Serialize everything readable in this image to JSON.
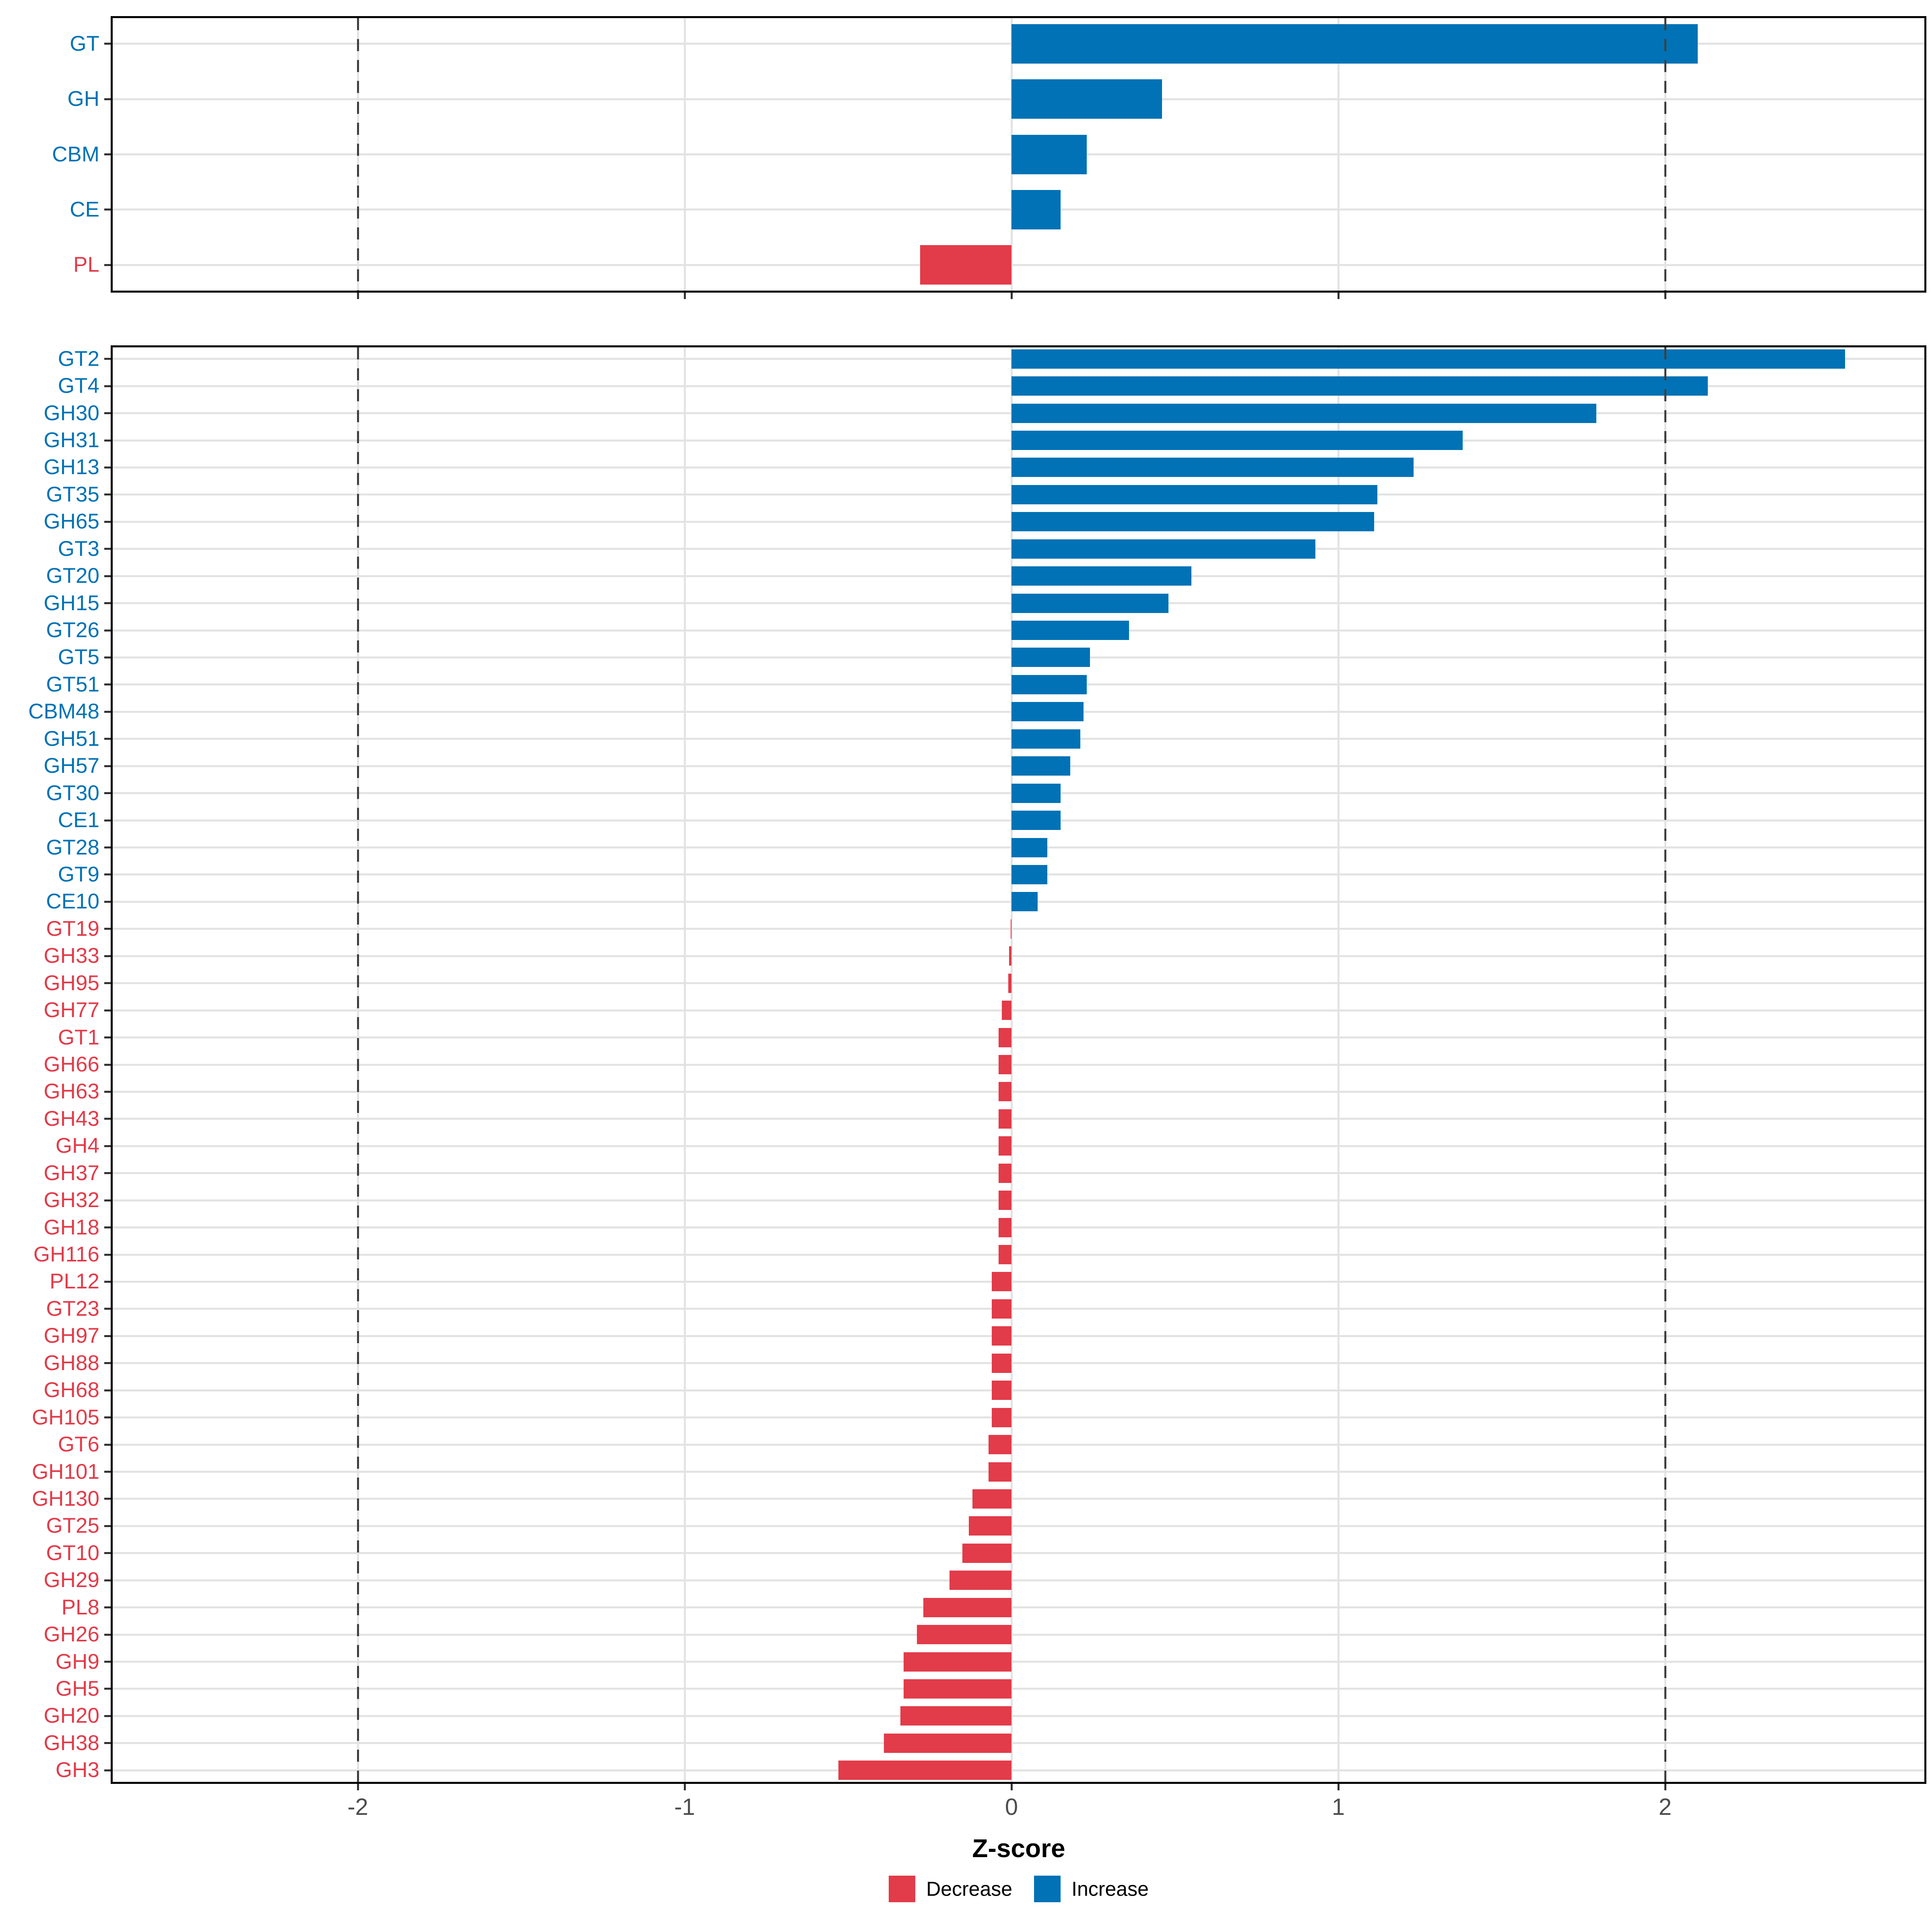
{
  "chart_data": {
    "type": "bar",
    "orientation": "horizontal",
    "title": "",
    "xlabel": "Z-score",
    "ylabel": "",
    "x_range": [
      -2.76,
      2.8
    ],
    "grid": "on",
    "x_ticks": [
      {
        "value": -2,
        "label": "-2"
      },
      {
        "value": -1,
        "label": "-1"
      },
      {
        "value": 0,
        "label": "0"
      },
      {
        "value": 1,
        "label": "1"
      },
      {
        "value": 2,
        "label": "2"
      }
    ],
    "dashed_guides": [
      -2,
      2
    ],
    "colors": {
      "increase": "#0072B5",
      "decrease": "#E23B49",
      "grid": "#E3E3E3",
      "dashed_guide": "#3F3F3F",
      "axis_tick": "#333333",
      "tick_label": "#4D4D4D",
      "panel_border": "#000000"
    },
    "legend": {
      "position": "bottom",
      "items": [
        {
          "label": "Decrease",
          "color": "#E23B49"
        },
        {
          "label": "Increase",
          "color": "#0072B5"
        }
      ]
    },
    "panels": [
      {
        "name": "enzyme-families",
        "categories": [
          "GT",
          "GH",
          "CBM",
          "CE",
          "PL"
        ],
        "values": [
          2.1,
          0.46,
          0.23,
          0.15,
          -0.28
        ]
      },
      {
        "name": "enzyme-subfamilies",
        "categories": [
          "GT2",
          "GT4",
          "GH30",
          "GH31",
          "GH13",
          "GT35",
          "GH65",
          "GT3",
          "GT20",
          "GH15",
          "GT26",
          "GT5",
          "GT51",
          "CBM48",
          "GH51",
          "GH57",
          "GT30",
          "CE1",
          "GT28",
          "GT9",
          "CE10",
          "GT19",
          "GH33",
          "GH95",
          "GH77",
          "GT1",
          "GH66",
          "GH63",
          "GH43",
          "GH4",
          "GH37",
          "GH32",
          "GH18",
          "GH116",
          "PL12",
          "GT23",
          "GH97",
          "GH88",
          "GH68",
          "GH105",
          "GT6",
          "GH101",
          "GH130",
          "GT25",
          "GT10",
          "GH29",
          "PL8",
          "GH26",
          "GH9",
          "GH5",
          "GH20",
          "GH38",
          "GH3"
        ],
        "values": [
          2.55,
          2.13,
          1.79,
          1.38,
          1.23,
          1.12,
          1.11,
          0.93,
          0.55,
          0.48,
          0.36,
          0.24,
          0.23,
          0.22,
          0.21,
          0.18,
          0.15,
          0.15,
          0.11,
          0.11,
          0.08,
          -0.003,
          -0.007,
          -0.01,
          -0.03,
          -0.04,
          -0.04,
          -0.04,
          -0.04,
          -0.04,
          -0.04,
          -0.04,
          -0.04,
          -0.04,
          -0.06,
          -0.06,
          -0.06,
          -0.06,
          -0.06,
          -0.06,
          -0.07,
          -0.07,
          -0.12,
          -0.13,
          -0.15,
          -0.19,
          -0.27,
          -0.29,
          -0.33,
          -0.33,
          -0.34,
          -0.39,
          -0.53
        ]
      }
    ]
  }
}
